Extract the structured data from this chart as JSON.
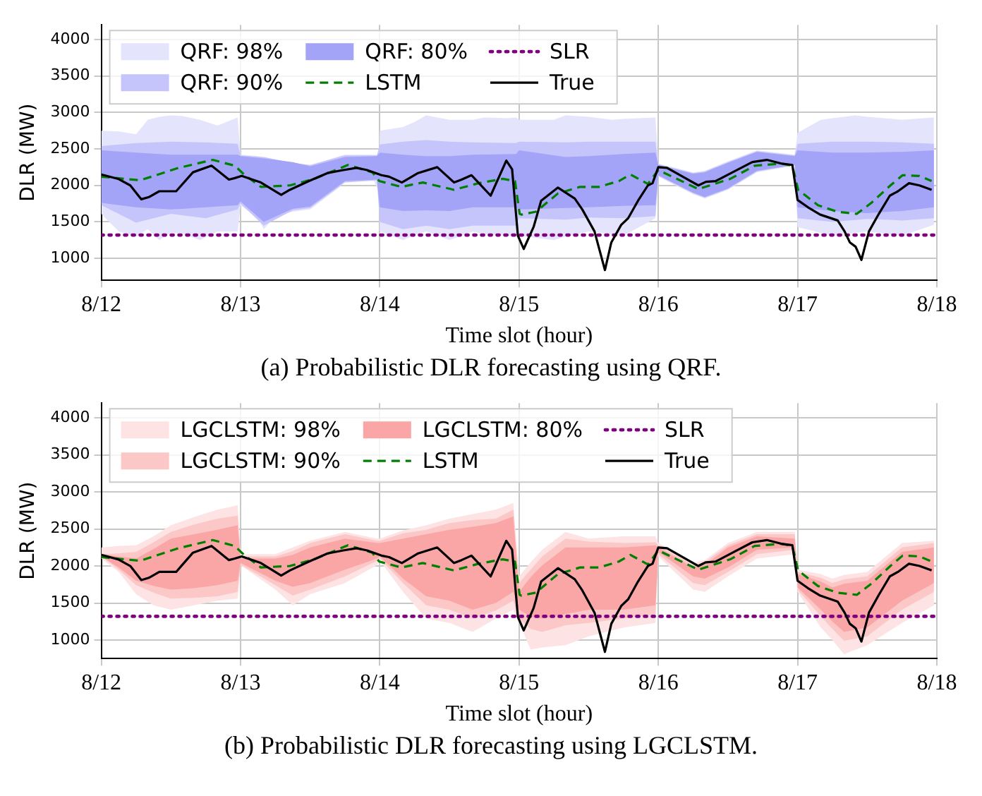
{
  "chart_data": [
    {
      "type": "line",
      "xlabel": "Time slot (hour)",
      "ylabel": "DLR (MW)",
      "xlim": [
        "--08-12",
        "--08-18"
      ],
      "xticks": [
        {
          "value": "--08-12",
          "label": "8/12"
        },
        {
          "value": "--08-13",
          "label": "8/13"
        },
        {
          "value": "--08-14",
          "label": "8/14"
        },
        {
          "value": "--08-15",
          "label": "8/15"
        },
        {
          "value": "--08-16",
          "label": "8/16"
        },
        {
          "value": "--08-17",
          "label": "8/17"
        },
        {
          "value": "--08-18",
          "label": "8/18"
        }
      ],
      "ylim": [
        700,
        4200
      ],
      "yticks": [
        1000,
        1500,
        2000,
        2500,
        3000,
        3500,
        4000
      ],
      "grid": true,
      "legend": "top left",
      "annotations": [
        "(a) Probabilistic DLR forecasting using QRF."
      ],
      "series": [
        {
          "name": "QRF: 98%",
          "type": "area",
          "color": "#e4e4fc",
          "x": [
            "--08-12T00:00",
            "--08-12T03:00",
            "--08-12T06:00",
            "--08-12T08:00",
            "--08-12T10:00",
            "--08-12T12:00",
            "--08-12T14:00",
            "--08-12T17:00",
            "--08-12T20:00",
            "--08-12T23:30",
            "--08-13T00:00",
            "--08-13T03:00",
            "--08-13T04:00",
            "--08-13T06:00",
            "--08-13T09:00",
            "--08-13T12:00",
            "--08-13T17:00",
            "--08-13T18:00",
            "--08-13T23:00",
            "--08-13T23:54",
            "--08-14T00:00",
            "--08-14T04:00",
            "--08-14T06:00",
            "--08-14T08:00",
            "--08-14T12:00",
            "--08-14T16:00",
            "--08-14T18:00",
            "--08-14T22:00",
            "--08-14T23:30",
            "--08-15T00:00",
            "--08-15T06:00",
            "--08-15T08:00",
            "--08-15T12:00",
            "--08-15T16:00",
            "--08-15T18:00",
            "--08-15T23:30",
            "--08-16T00:00",
            "--08-16T06:00",
            "--08-16T08:00",
            "--08-16T12:00",
            "--08-16T17:00",
            "--08-16T23:30",
            "--08-17T00:00",
            "--08-17T04:00",
            "--08-17T06:00",
            "--08-17T10:00",
            "--08-17T12:00",
            "--08-17T18:00",
            "--08-17T23:30"
          ],
          "values": [
            null,
            null,
            null,
            null,
            null,
            null,
            null,
            null,
            null,
            null,
            null,
            null,
            null,
            null,
            null,
            null,
            null,
            null,
            null,
            null,
            null,
            null,
            null,
            null,
            null,
            null,
            null,
            null,
            null,
            null,
            null,
            null,
            null,
            null,
            null,
            null,
            null,
            null,
            null,
            null,
            null,
            null,
            null,
            null,
            null,
            null,
            null,
            null,
            null
          ],
          "upper": [
            2750,
            2740,
            2700,
            2900,
            2940,
            2960,
            2950,
            2900,
            2820,
            2930,
            2420,
            2400,
            2380,
            2330,
            2300,
            2270,
            2400,
            2420,
            2420,
            2420,
            2750,
            2800,
            2870,
            2960,
            2900,
            2900,
            2930,
            2920,
            2930,
            2900,
            2900,
            2960,
            2940,
            2900,
            2910,
            2930,
            2300,
            2180,
            2200,
            2330,
            2480,
            2420,
            2720,
            2900,
            2920,
            2960,
            2940,
            2900,
            2930
          ],
          "lower": [
            1610,
            1370,
            1300,
            1400,
            1250,
            1350,
            1340,
            1250,
            1370,
            1370,
            1730,
            1550,
            1400,
            1580,
            1640,
            1670,
            1970,
            2060,
            2060,
            1900,
            1370,
            1250,
            1320,
            1370,
            1250,
            1370,
            1330,
            1310,
            1310,
            1310,
            1250,
            1300,
            1370,
            1330,
            1310,
            1550,
            2120,
            1880,
            1820,
            1940,
            2180,
            2270,
            1430,
            1350,
            1310,
            1350,
            1370,
            1310,
            1460
          ]
        },
        {
          "name": "QRF: 90%",
          "type": "area",
          "color": "#c5c5fb",
          "x": [
            "--08-12T00:00",
            "--08-12T06:00",
            "--08-12T12:00",
            "--08-12T18:00",
            "--08-12T23:30",
            "--08-13T00:00",
            "--08-13T04:00",
            "--08-13T09:00",
            "--08-13T12:00",
            "--08-13T18:00",
            "--08-13T23:30",
            "--08-14T00:00",
            "--08-14T04:00",
            "--08-14T08:00",
            "--08-14T12:00",
            "--08-14T16:00",
            "--08-14T23:30",
            "--08-15T00:00",
            "--08-15T08:00",
            "--08-15T12:00",
            "--08-15T18:00",
            "--08-15T23:30",
            "--08-16T00:00",
            "--08-16T06:00",
            "--08-16T08:00",
            "--08-16T12:00",
            "--08-16T17:00",
            "--08-16T23:30",
            "--08-17T00:00",
            "--08-17T06:00",
            "--08-17T12:00",
            "--08-17T18:00",
            "--08-17T23:30"
          ],
          "values": [
            null,
            null,
            null,
            null,
            null,
            null,
            null,
            null,
            null,
            null,
            null,
            null,
            null,
            null,
            null,
            null,
            null,
            null,
            null,
            null,
            null,
            null,
            null,
            null,
            null,
            null,
            null,
            null,
            null,
            null,
            null,
            null,
            null
          ],
          "upper": [
            2540,
            2580,
            2600,
            2590,
            2570,
            2410,
            2390,
            2310,
            2280,
            2410,
            2410,
            2560,
            2600,
            2620,
            2600,
            2590,
            2580,
            2600,
            2590,
            2600,
            2600,
            2600,
            2290,
            2170,
            2190,
            2320,
            2470,
            2410,
            2570,
            2600,
            2600,
            2590,
            2570
          ],
          "lower": [
            1730,
            1490,
            1610,
            1550,
            1670,
            1750,
            1450,
            1660,
            1690,
            2040,
            2070,
            1500,
            1400,
            1450,
            1400,
            1450,
            1450,
            1550,
            1530,
            1560,
            1550,
            1580,
            2130,
            1890,
            1830,
            1950,
            2190,
            2280,
            1550,
            1500,
            1540,
            1520,
            1550
          ]
        },
        {
          "name": "QRF: 80%",
          "type": "area",
          "color": "#a3a3f8",
          "x": [
            "--08-12T00:00",
            "--08-12T06:00",
            "--08-12T12:00",
            "--08-12T18:00",
            "--08-12T23:30",
            "--08-13T00:00",
            "--08-13T04:00",
            "--08-13T09:00",
            "--08-13T12:00",
            "--08-13T18:00",
            "--08-13T23:30",
            "--08-14T00:00",
            "--08-14T04:00",
            "--08-14T08:00",
            "--08-14T12:00",
            "--08-14T16:00",
            "--08-14T23:30",
            "--08-15T00:00",
            "--08-15T08:00",
            "--08-15T12:00",
            "--08-15T18:00",
            "--08-15T23:30",
            "--08-16T00:00",
            "--08-16T06:00",
            "--08-16T08:00",
            "--08-16T12:00",
            "--08-16T17:00",
            "--08-16T23:30",
            "--08-17T00:00",
            "--08-17T06:00",
            "--08-17T12:00",
            "--08-17T18:00",
            "--08-17T23:30"
          ],
          "values": [
            null,
            null,
            null,
            null,
            null,
            null,
            null,
            null,
            null,
            null,
            null,
            null,
            null,
            null,
            null,
            null,
            null,
            null,
            null,
            null,
            null,
            null,
            null,
            null,
            null,
            null,
            null,
            null,
            null,
            null,
            null,
            null,
            null
          ],
          "upper": [
            2480,
            2450,
            2420,
            2420,
            2420,
            2400,
            2370,
            2320,
            2260,
            2390,
            2400,
            2450,
            2420,
            2400,
            2400,
            2420,
            2430,
            2480,
            2390,
            2400,
            2430,
            2450,
            2280,
            2160,
            2180,
            2310,
            2460,
            2400,
            2480,
            2450,
            2450,
            2460,
            2480
          ],
          "lower": [
            1760,
            1700,
            1670,
            1700,
            1730,
            1780,
            1500,
            1680,
            1710,
            2060,
            2080,
            1700,
            1650,
            1660,
            1650,
            1700,
            1700,
            1670,
            1690,
            1700,
            1720,
            1730,
            2140,
            1900,
            1840,
            1960,
            2200,
            2280,
            1700,
            1650,
            1620,
            1650,
            1700
          ]
        },
        {
          "name": "LSTM",
          "type": "line",
          "color": "#008000",
          "line_style": "dashed",
          "x": [
            "--08-12T00:00",
            "--08-12T06:42",
            "--08-12T13:18",
            "--08-12T19:12",
            "--08-12T23:00",
            "--08-13T00:36",
            "--08-13T03:30",
            "--08-13T08:30",
            "--08-13T12:42",
            "--08-13T18:30",
            "--08-13T22:42",
            "--08-13T23:54",
            "--08-14T03:42",
            "--08-14T07:24",
            "--08-14T12:48",
            "--08-14T17:00",
            "--08-14T21:12",
            "--08-14T23:18",
            "--08-15T00:06",
            "--08-15T00:24",
            "--08-15T02:54",
            "--08-15T06:42",
            "--08-15T10:30",
            "--08-15T13:48",
            "--08-15T17:12",
            "--08-15T19:12",
            "--08-15T22:12",
            "--08-16T00:00",
            "--08-16T06:54",
            "--08-16T12:24",
            "--08-16T16:36",
            "--08-16T21:12",
            "--08-16T23:06",
            "--08-17T00:06",
            "--08-17T03:30",
            "--08-17T06:48",
            "--08-17T10:12",
            "--08-17T12:42",
            "--08-17T16:00",
            "--08-17T18:06",
            "--08-17T21:00",
            "--08-17T23:06"
          ],
          "values": [
            2120,
            2070,
            2240,
            2350,
            2270,
            2150,
            1980,
            2000,
            2090,
            2280,
            2180,
            2060,
            1980,
            2040,
            1940,
            2030,
            2090,
            2060,
            1610,
            1600,
            1640,
            1890,
            1980,
            1980,
            2060,
            2150,
            2020,
            2210,
            1950,
            2090,
            2270,
            2300,
            2270,
            1940,
            1730,
            1640,
            1610,
            1760,
            2000,
            2140,
            2130,
            2060
          ]
        },
        {
          "name": "SLR",
          "type": "line",
          "color": "#800080",
          "line_style": "dotted",
          "x": [
            "--08-12T00:00",
            "--08-18T00:00"
          ],
          "values": [
            1320,
            1320
          ]
        },
        {
          "name": "True",
          "type": "line",
          "color": "#000000",
          "line_style": "solid",
          "x": [
            "--08-12T00:00",
            "--08-12T02:54",
            "--08-12T05:00",
            "--08-12T06:54",
            "--08-12T08:12",
            "--08-12T10:00",
            "--08-12T12:54",
            "--08-12T15:48",
            "--08-12T19:00",
            "--08-12T22:00",
            "--08-12T23:00",
            "--08-13T00:12",
            "--08-13T03:30",
            "--08-13T07:00",
            "--08-13T08:30",
            "--08-13T11:48",
            "--08-13T15:00",
            "--08-13T17:42",
            "--08-13T20:00",
            "--08-13T21:48",
            "--08-14T00:18",
            "--08-14T01:36",
            "--08-14T03:48",
            "--08-14T06:36",
            "--08-14T09:54",
            "--08-14T12:48",
            "--08-14T14:06",
            "--08-14T15:48",
            "--08-14T19:06",
            "--08-14T21:48",
            "--08-14T22:48",
            "--08-14T23:48",
            "--08-15T00:48",
            "--08-15T02:30",
            "--08-15T03:48",
            "--08-15T06:42",
            "--08-15T09:36",
            "--08-15T10:54",
            "--08-15T13:00",
            "--08-15T14:48",
            "--08-15T15:54",
            "--08-15T17:36",
            "--08-15T18:48",
            "--08-15T20:30",
            "--08-15T22:12",
            "--08-15T23:00",
            "--08-16T00:00",
            "--08-16T01:30",
            "--08-16T06:54",
            "--08-16T08:12",
            "--08-16T09:54",
            "--08-16T12:48",
            "--08-16T16:12",
            "--08-16T18:42",
            "--08-16T21:12",
            "--08-16T23:06",
            "--08-17T00:00",
            "--08-17T01:48",
            "--08-17T03:54",
            "--08-17T06:54",
            "--08-17T08:06",
            "--08-17T09:00",
            "--08-17T10:00",
            "--08-17T11:00",
            "--08-17T12:18",
            "--08-17T14:00",
            "--08-17T15:54",
            "--08-17T17:18",
            "--08-17T19:12",
            "--08-17T21:00",
            "--08-17T23:06"
          ],
          "values": [
            2150,
            2090,
            2000,
            1810,
            1840,
            1920,
            1920,
            2180,
            2270,
            2080,
            2100,
            2130,
            2040,
            1870,
            1940,
            2060,
            2170,
            2210,
            2240,
            2210,
            2140,
            2120,
            2040,
            2170,
            2250,
            2040,
            2080,
            2140,
            1860,
            2340,
            2220,
            1310,
            1130,
            1430,
            1790,
            1970,
            1820,
            1670,
            1370,
            840,
            1220,
            1460,
            1550,
            1790,
            2000,
            2030,
            2250,
            2240,
            2000,
            2050,
            2060,
            2180,
            2320,
            2350,
            2300,
            2280,
            1800,
            1700,
            1600,
            1520,
            1370,
            1220,
            1160,
            980,
            1370,
            1610,
            1860,
            1920,
            2030,
            2000,
            1940
          ]
        }
      ]
    },
    {
      "type": "line",
      "xlabel": "Time slot (hour)",
      "ylabel": "DLR (MW)",
      "xlim": [
        "--08-12",
        "--08-18"
      ],
      "xticks": [
        {
          "value": "--08-12",
          "label": "8/12"
        },
        {
          "value": "--08-13",
          "label": "8/13"
        },
        {
          "value": "--08-14",
          "label": "8/14"
        },
        {
          "value": "--08-15",
          "label": "8/15"
        },
        {
          "value": "--08-16",
          "label": "8/16"
        },
        {
          "value": "--08-17",
          "label": "8/17"
        },
        {
          "value": "--08-18",
          "label": "8/18"
        }
      ],
      "ylim": [
        750,
        4200
      ],
      "yticks": [
        1000,
        1500,
        2000,
        2500,
        3000,
        3500,
        4000
      ],
      "grid": true,
      "legend": "top left",
      "annotations": [
        "(b) Probabilistic DLR forecasting using LGCLSTM."
      ],
      "series": [
        {
          "name": "LGCLSTM: 98%",
          "type": "area",
          "color": "#fde3e3",
          "x": [
            "--08-12T00:00",
            "--08-12T03:00",
            "--08-12T06:00",
            "--08-12T09:00",
            "--08-12T12:00",
            "--08-12T16:00",
            "--08-12T20:00",
            "--08-12T23:30",
            "--08-13T00:00",
            "--08-13T06:00",
            "--08-13T09:00",
            "--08-13T12:00",
            "--08-13T18:00",
            "--08-13T23:30",
            "--08-14T00:00",
            "--08-14T04:00",
            "--08-14T08:00",
            "--08-14T12:00",
            "--08-14T16:00",
            "--08-14T20:00",
            "--08-14T23:00",
            "--08-15T00:00",
            "--08-15T02:00",
            "--08-15T04:00",
            "--08-15T08:00",
            "--08-15T12:00",
            "--08-15T18:00",
            "--08-15T23:30",
            "--08-16T00:00",
            "--08-16T06:00",
            "--08-16T08:00",
            "--08-16T12:00",
            "--08-16T17:00",
            "--08-16T23:30",
            "--08-17T00:00",
            "--08-17T04:00",
            "--08-17T06:00",
            "--08-17T08:00",
            "--08-17T12:00",
            "--08-17T18:00",
            "--08-17T23:30"
          ],
          "values": [
            null,
            null,
            null,
            null,
            null,
            null,
            null,
            null,
            null,
            null,
            null,
            null,
            null,
            null,
            null,
            null,
            null,
            null,
            null,
            null,
            null,
            null,
            null,
            null,
            null,
            null,
            null,
            null,
            null,
            null,
            null,
            null,
            null,
            null,
            null,
            null,
            null,
            null,
            null,
            null,
            null
          ],
          "upper": [
            2250,
            2270,
            2280,
            2400,
            2550,
            2660,
            2760,
            2820,
            2160,
            2160,
            2250,
            2340,
            2460,
            2370,
            2370,
            2480,
            2550,
            2640,
            2700,
            2760,
            2850,
            1860,
            2050,
            2220,
            2460,
            2370,
            2400,
            2400,
            2310,
            2040,
            2080,
            2310,
            2460,
            2460,
            1950,
            1890,
            1830,
            1880,
            1920,
            2310,
            2340
          ],
          "lower": [
            2100,
            1920,
            1620,
            1470,
            1410,
            1470,
            1530,
            1560,
            2010,
            1680,
            1470,
            1620,
            1770,
            2010,
            2070,
            1650,
            1290,
            1230,
            1110,
            1290,
            1410,
            1230,
            870,
            900,
            930,
            1050,
            1170,
            1230,
            2130,
            1680,
            1650,
            1860,
            2100,
            2160,
            1650,
            1170,
            1000,
            810,
            930,
            1230,
            1470
          ]
        },
        {
          "name": "LGCLSTM: 90%",
          "type": "area",
          "color": "#fcc7c7",
          "x": [
            "--08-12T00:00",
            "--08-12T03:00",
            "--08-12T06:00",
            "--08-12T09:00",
            "--08-12T12:00",
            "--08-12T16:00",
            "--08-12T20:00",
            "--08-12T23:30",
            "--08-13T00:00",
            "--08-13T06:00",
            "--08-13T09:00",
            "--08-13T12:00",
            "--08-13T18:00",
            "--08-13T23:30",
            "--08-14T00:00",
            "--08-14T04:00",
            "--08-14T08:00",
            "--08-14T12:00",
            "--08-14T16:00",
            "--08-14T20:00",
            "--08-14T23:00",
            "--08-15T00:00",
            "--08-15T02:00",
            "--08-15T04:00",
            "--08-15T08:00",
            "--08-15T12:00",
            "--08-15T18:00",
            "--08-15T23:30",
            "--08-16T00:00",
            "--08-16T06:00",
            "--08-16T08:00",
            "--08-16T12:00",
            "--08-16T17:00",
            "--08-16T23:30",
            "--08-17T00:00",
            "--08-17T04:00",
            "--08-17T06:00",
            "--08-17T08:00",
            "--08-17T12:00",
            "--08-17T18:00",
            "--08-17T23:30"
          ],
          "values": [
            null,
            null,
            null,
            null,
            null,
            null,
            null,
            null,
            null,
            null,
            null,
            null,
            null,
            null,
            null,
            null,
            null,
            null,
            null,
            null,
            null,
            null,
            null,
            null,
            null,
            null,
            null,
            null,
            null,
            null,
            null,
            null,
            null,
            null,
            null,
            null,
            null,
            null,
            null,
            null,
            null
          ],
          "upper": [
            2160,
            2170,
            2190,
            2320,
            2460,
            2560,
            2640,
            2680,
            2130,
            2130,
            2200,
            2310,
            2430,
            2340,
            2340,
            2440,
            2490,
            2580,
            2620,
            2640,
            2760,
            1770,
            1950,
            2130,
            2370,
            2330,
            2310,
            2320,
            2280,
            2010,
            2050,
            2280,
            2430,
            2430,
            1920,
            1840,
            1770,
            1820,
            1860,
            2250,
            2310
          ],
          "lower": [
            2130,
            1950,
            1740,
            1640,
            1560,
            1570,
            1590,
            1650,
            2020,
            1740,
            1600,
            1680,
            1860,
            2070,
            2100,
            1770,
            1470,
            1410,
            1290,
            1400,
            1530,
            1290,
            1150,
            1110,
            1200,
            1230,
            1290,
            1350,
            2160,
            1770,
            1740,
            1920,
            2160,
            2220,
            1680,
            1320,
            1150,
            990,
            1050,
            1410,
            1650
          ]
        },
        {
          "name": "LGCLSTM: 80%",
          "type": "area",
          "color": "#fba6a6",
          "x": [
            "--08-12T00:00",
            "--08-12T03:00",
            "--08-12T06:00",
            "--08-12T09:00",
            "--08-12T12:00",
            "--08-12T16:00",
            "--08-12T20:00",
            "--08-12T23:30",
            "--08-13T00:00",
            "--08-13T06:00",
            "--08-13T09:00",
            "--08-13T12:00",
            "--08-13T18:00",
            "--08-13T23:30",
            "--08-14T00:00",
            "--08-14T04:00",
            "--08-14T08:00",
            "--08-14T12:00",
            "--08-14T16:00",
            "--08-14T20:00",
            "--08-14T23:00",
            "--08-15T00:00",
            "--08-15T02:00",
            "--08-15T04:00",
            "--08-15T08:00",
            "--08-15T12:00",
            "--08-15T18:00",
            "--08-15T23:30",
            "--08-16T00:00",
            "--08-16T06:00",
            "--08-16T08:00",
            "--08-16T12:00",
            "--08-16T17:00",
            "--08-16T23:30",
            "--08-17T00:00",
            "--08-17T04:00",
            "--08-17T06:00",
            "--08-17T08:00",
            "--08-17T12:00",
            "--08-17T18:00",
            "--08-17T23:30"
          ],
          "values": [
            null,
            null,
            null,
            null,
            null,
            null,
            null,
            null,
            null,
            null,
            null,
            null,
            null,
            null,
            null,
            null,
            null,
            null,
            null,
            null,
            null,
            null,
            null,
            null,
            null,
            null,
            null,
            null,
            null,
            null,
            null,
            null,
            null,
            null,
            null,
            null,
            null,
            null,
            null,
            null,
            null
          ],
          "upper": [
            2160,
            2130,
            2100,
            2230,
            2370,
            2430,
            2490,
            2550,
            2100,
            2100,
            2150,
            2250,
            2370,
            2310,
            2310,
            2370,
            2430,
            2490,
            2530,
            2580,
            2670,
            1650,
            1850,
            2010,
            2250,
            2250,
            2250,
            2280,
            2250,
            1980,
            2010,
            2250,
            2400,
            2370,
            1890,
            1790,
            1710,
            1760,
            1800,
            2190,
            2250
          ],
          "lower": [
            2130,
            1980,
            1800,
            1730,
            1680,
            1700,
            1740,
            1800,
            2040,
            1800,
            1720,
            1770,
            1950,
            2100,
            2130,
            1830,
            1590,
            1530,
            1410,
            1500,
            1650,
            1410,
            1320,
            1290,
            1350,
            1410,
            1410,
            1470,
            2190,
            1860,
            1830,
            1980,
            2220,
            2250,
            1710,
            1410,
            1250,
            1110,
            1170,
            1530,
            1770
          ]
        },
        {
          "name": "LSTM",
          "type": "line",
          "color": "#008000",
          "line_style": "dashed",
          "x": [
            "--08-12T00:00",
            "--08-12T06:42",
            "--08-12T13:18",
            "--08-12T19:12",
            "--08-12T23:00",
            "--08-13T00:36",
            "--08-13T03:30",
            "--08-13T08:30",
            "--08-13T12:42",
            "--08-13T18:30",
            "--08-13T22:42",
            "--08-13T23:54",
            "--08-14T03:42",
            "--08-14T07:24",
            "--08-14T12:48",
            "--08-14T17:00",
            "--08-14T21:12",
            "--08-14T23:18",
            "--08-15T00:06",
            "--08-15T00:24",
            "--08-15T02:54",
            "--08-15T06:42",
            "--08-15T10:30",
            "--08-15T13:48",
            "--08-15T17:12",
            "--08-15T19:12",
            "--08-15T22:12",
            "--08-16T00:00",
            "--08-16T06:54",
            "--08-16T12:24",
            "--08-16T16:36",
            "--08-16T21:12",
            "--08-16T23:06",
            "--08-17T00:06",
            "--08-17T03:30",
            "--08-17T06:48",
            "--08-17T10:12",
            "--08-17T12:42",
            "--08-17T16:00",
            "--08-17T18:06",
            "--08-17T21:00",
            "--08-17T23:06"
          ],
          "values": [
            2120,
            2070,
            2240,
            2350,
            2270,
            2150,
            1980,
            2000,
            2090,
            2280,
            2180,
            2060,
            1980,
            2040,
            1940,
            2030,
            2090,
            2060,
            1610,
            1600,
            1640,
            1890,
            1980,
            1980,
            2060,
            2150,
            2020,
            2210,
            1950,
            2090,
            2270,
            2300,
            2270,
            1940,
            1730,
            1640,
            1610,
            1760,
            2000,
            2140,
            2130,
            2060
          ]
        },
        {
          "name": "SLR",
          "type": "line",
          "color": "#800080",
          "line_style": "dotted",
          "x": [
            "--08-12T00:00",
            "--08-18T00:00"
          ],
          "values": [
            1320,
            1320
          ]
        },
        {
          "name": "True",
          "type": "line",
          "color": "#000000",
          "line_style": "solid",
          "x": [
            "--08-12T00:00",
            "--08-12T02:54",
            "--08-12T05:00",
            "--08-12T06:54",
            "--08-12T08:12",
            "--08-12T10:00",
            "--08-12T12:54",
            "--08-12T15:48",
            "--08-12T19:00",
            "--08-12T22:00",
            "--08-12T23:00",
            "--08-13T00:12",
            "--08-13T03:30",
            "--08-13T07:00",
            "--08-13T08:30",
            "--08-13T11:48",
            "--08-13T15:00",
            "--08-13T17:42",
            "--08-13T20:00",
            "--08-13T21:48",
            "--08-14T00:18",
            "--08-14T01:36",
            "--08-14T03:48",
            "--08-14T06:36",
            "--08-14T09:54",
            "--08-14T12:48",
            "--08-14T14:06",
            "--08-14T15:48",
            "--08-14T19:06",
            "--08-14T21:48",
            "--08-14T22:48",
            "--08-14T23:48",
            "--08-15T00:48",
            "--08-15T02:30",
            "--08-15T03:48",
            "--08-15T06:42",
            "--08-15T09:36",
            "--08-15T10:54",
            "--08-15T13:00",
            "--08-15T14:48",
            "--08-15T15:54",
            "--08-15T17:36",
            "--08-15T18:48",
            "--08-15T20:30",
            "--08-15T22:12",
            "--08-15T23:00",
            "--08-16T00:00",
            "--08-16T01:30",
            "--08-16T06:54",
            "--08-16T08:12",
            "--08-16T09:54",
            "--08-16T12:48",
            "--08-16T16:12",
            "--08-16T18:42",
            "--08-16T21:12",
            "--08-16T23:06",
            "--08-17T00:00",
            "--08-17T01:48",
            "--08-17T03:54",
            "--08-17T06:54",
            "--08-17T08:06",
            "--08-17T09:00",
            "--08-17T10:00",
            "--08-17T11:00",
            "--08-17T12:18",
            "--08-17T14:00",
            "--08-17T15:54",
            "--08-17T17:18",
            "--08-17T19:12",
            "--08-17T21:00",
            "--08-17T23:06"
          ],
          "values": [
            2150,
            2090,
            2000,
            1810,
            1840,
            1920,
            1920,
            2180,
            2270,
            2080,
            2100,
            2130,
            2040,
            1870,
            1940,
            2060,
            2170,
            2210,
            2240,
            2210,
            2140,
            2120,
            2040,
            2170,
            2250,
            2040,
            2080,
            2140,
            1860,
            2340,
            2220,
            1310,
            1130,
            1430,
            1790,
            1970,
            1820,
            1670,
            1370,
            840,
            1220,
            1460,
            1550,
            1790,
            2000,
            2030,
            2250,
            2240,
            2000,
            2050,
            2060,
            2180,
            2320,
            2350,
            2300,
            2280,
            1800,
            1700,
            1600,
            1520,
            1370,
            1220,
            1160,
            980,
            1370,
            1610,
            1860,
            1920,
            2030,
            2000,
            1940
          ]
        }
      ]
    }
  ]
}
